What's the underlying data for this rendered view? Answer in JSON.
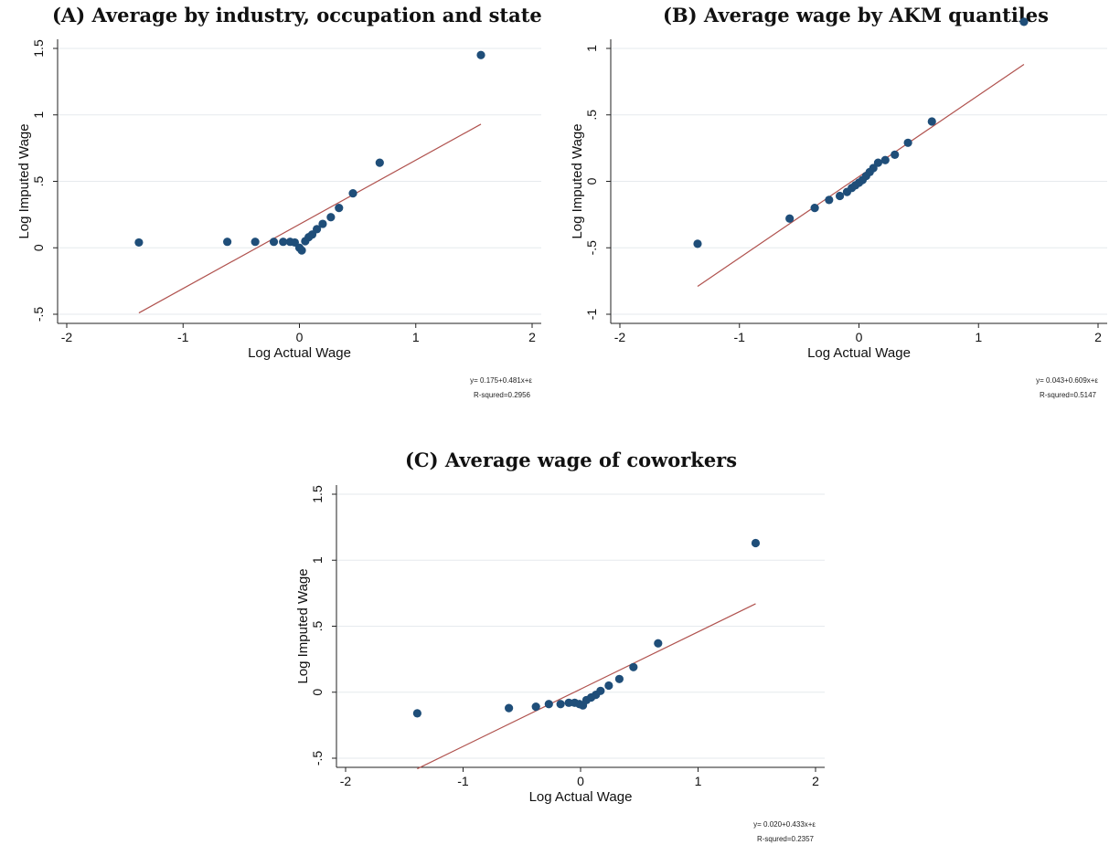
{
  "chart_data": [
    {
      "type": "scatter",
      "title": "(A)  Average by industry, occupation and state",
      "xlabel": "Log Actual Wage",
      "ylabel": "Log Imputed Wage",
      "xlim": [
        -2,
        2
      ],
      "ylim": [
        -0.5,
        1.5
      ],
      "xticks": [
        -2,
        -1,
        0,
        1,
        2
      ],
      "xtick_labels": [
        "-2",
        "-1",
        "0",
        "1",
        "2"
      ],
      "yticks": [
        -0.5,
        0,
        0.5,
        1,
        1.5
      ],
      "ytick_labels": [
        "-.5",
        "0",
        ".5",
        "1",
        "1.5"
      ],
      "grid": true,
      "series": [
        {
          "x": [
            -1.38,
            -0.62,
            -0.38,
            -0.22,
            -0.14,
            -0.08,
            -0.04,
            0.0,
            0.02,
            0.05,
            0.08,
            0.11,
            0.15,
            0.2,
            0.27,
            0.34,
            0.46,
            0.69,
            1.56
          ],
          "y": [
            0.04,
            0.045,
            0.045,
            0.045,
            0.045,
            0.045,
            0.04,
            0.0,
            -0.02,
            0.05,
            0.08,
            0.1,
            0.14,
            0.18,
            0.23,
            0.3,
            0.41,
            0.64,
            1.45
          ]
        }
      ],
      "fit_line": {
        "x": [
          -1.38,
          1.56
        ],
        "y": [
          -0.49,
          0.93
        ]
      },
      "colors": {
        "points": "#1f4e79",
        "fit": "#b0524e"
      },
      "annotation": {
        "equation": "y= 0.175+0.481x+ε",
        "r_squared": "R-squred=0.2956"
      }
    },
    {
      "type": "scatter",
      "title": "(B)  Average wage by AKM quantiles",
      "xlabel": "Log Actual Wage",
      "ylabel": "Log Imputed Wage",
      "xlim": [
        -2,
        2
      ],
      "ylim": [
        -1,
        1
      ],
      "xticks": [
        -2,
        -1,
        0,
        1,
        2
      ],
      "xtick_labels": [
        "-2",
        "-1",
        "0",
        "1",
        "2"
      ],
      "yticks": [
        -1,
        -0.5,
        0,
        0.5,
        1
      ],
      "ytick_labels": [
        "-1",
        "-.5",
        "0",
        ".5",
        "1"
      ],
      "grid": true,
      "series": [
        {
          "x": [
            -1.35,
            -0.58,
            -0.37,
            -0.25,
            -0.16,
            -0.1,
            -0.06,
            -0.03,
            0.0,
            0.03,
            0.06,
            0.09,
            0.12,
            0.16,
            0.22,
            0.3,
            0.41,
            0.61,
            1.38
          ],
          "y": [
            -0.47,
            -0.28,
            -0.2,
            -0.14,
            -0.11,
            -0.08,
            -0.05,
            -0.03,
            -0.01,
            0.01,
            0.04,
            0.07,
            0.1,
            0.14,
            0.16,
            0.2,
            0.29,
            0.45,
            1.2
          ]
        }
      ],
      "fit_line": {
        "x": [
          -1.35,
          1.38
        ],
        "y": [
          -0.79,
          0.88
        ]
      },
      "colors": {
        "points": "#1f4e79",
        "fit": "#b0524e"
      },
      "annotation": {
        "equation": "y= 0.043+0.609x+ε",
        "r_squared": "R-squred=0.5147"
      }
    },
    {
      "type": "scatter",
      "title": "(C)  Average wage of coworkers",
      "xlabel": "Log Actual Wage",
      "ylabel": "Log Imputed Wage",
      "xlim": [
        -2,
        2
      ],
      "ylim": [
        -0.5,
        1.5
      ],
      "xticks": [
        -2,
        -1,
        0,
        1,
        2
      ],
      "xtick_labels": [
        "-2",
        "-1",
        "0",
        "1",
        "2"
      ],
      "yticks": [
        -0.5,
        0,
        0.5,
        1,
        1.5
      ],
      "ytick_labels": [
        "-.5",
        "0",
        ".5",
        "1",
        "1.5"
      ],
      "grid": true,
      "series": [
        {
          "x": [
            -1.39,
            -0.61,
            -0.38,
            -0.27,
            -0.17,
            -0.1,
            -0.05,
            -0.01,
            0.02,
            0.05,
            0.09,
            0.13,
            0.17,
            0.24,
            0.33,
            0.45,
            0.66,
            1.49
          ],
          "y": [
            -0.16,
            -0.12,
            -0.11,
            -0.09,
            -0.09,
            -0.08,
            -0.08,
            -0.09,
            -0.1,
            -0.06,
            -0.04,
            -0.02,
            0.01,
            0.05,
            0.1,
            0.19,
            0.37,
            1.13
          ]
        }
      ],
      "fit_line": {
        "x": [
          -1.39,
          1.49
        ],
        "y": [
          -0.58,
          0.67
        ]
      },
      "colors": {
        "points": "#1f4e79",
        "fit": "#b0524e"
      },
      "annotation": {
        "equation": "y= 0.020+0.433x+ε",
        "r_squared": "R-squred=0.2357"
      }
    }
  ]
}
